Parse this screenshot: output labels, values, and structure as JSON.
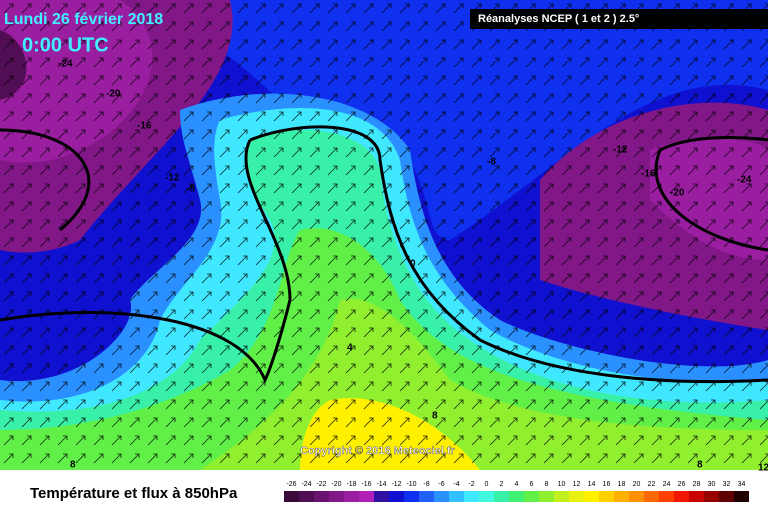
{
  "header": {
    "date": "Lundi 26 février 2018",
    "time": "0:00 UTC",
    "source": "Réanalyses NCEP ( 1 et 2 ) 2.5°"
  },
  "map": {
    "copyright": "Copyright © 2016 Meteociel.fr",
    "contour_labels": [
      -24,
      -20,
      -16,
      -12,
      -8,
      -8,
      -12,
      -16,
      -20,
      -24,
      0,
      4,
      8,
      8,
      8,
      12
    ]
  },
  "legend": {
    "title": "Température et flux à 850hPa",
    "ticks": [
      -26,
      -24,
      -22,
      -20,
      -18,
      -16,
      -14,
      -12,
      -10,
      -8,
      -6,
      -4,
      -2,
      0,
      2,
      4,
      6,
      8,
      10,
      12,
      14,
      16,
      18,
      20,
      22,
      24,
      26,
      28,
      30,
      32,
      34
    ],
    "colors": [
      "#3a0a3a",
      "#520e55",
      "#6a1270",
      "#821888",
      "#9a1ea0",
      "#b020b8",
      "#3010a0",
      "#1010d0",
      "#1030f0",
      "#2060ff",
      "#2a90ff",
      "#30c0ff",
      "#40e8ff",
      "#40f8e0",
      "#38f0a8",
      "#40f070",
      "#60f048",
      "#90f030",
      "#c0f020",
      "#e8f010",
      "#fff000",
      "#ffd000",
      "#ffb000",
      "#ff9000",
      "#ff6800",
      "#ff4000",
      "#f01800",
      "#c80000",
      "#980000",
      "#600000",
      "#200000"
    ]
  }
}
